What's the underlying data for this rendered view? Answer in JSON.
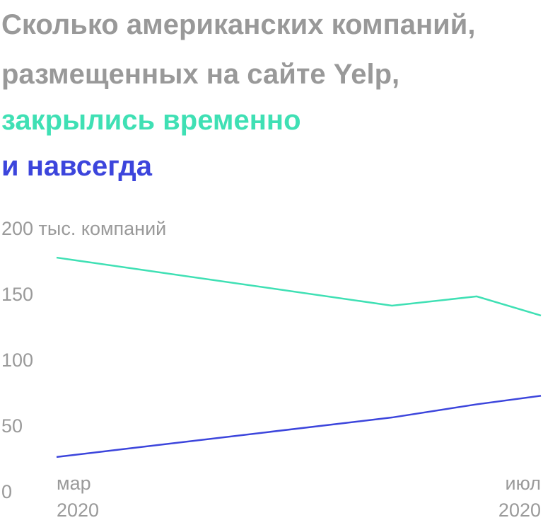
{
  "chart_data": {
    "type": "line",
    "title": "Сколько американских компаний, размещенных на сайте Yelp,",
    "x": [
      3,
      5.77,
      6.47,
      7
    ],
    "xlim": [
      3,
      7
    ],
    "xticks": [
      {
        "value": 3,
        "label": "мар 2020"
      },
      {
        "value": 7,
        "label": "июл 2020"
      }
    ],
    "ylim": [
      0,
      200
    ],
    "yticks": [
      0,
      50,
      100,
      150,
      {
        "value": 200,
        "label": "200 тыс. компаний"
      }
    ],
    "grid": false,
    "series": [
      {
        "name": "закрылись временно",
        "color": "#3fe0b4",
        "values": [
          179,
          142.5,
          149.5,
          135
        ]
      },
      {
        "name": "и навсегда",
        "color": "#3c45dc",
        "values": [
          27.5,
          57.5,
          67.5,
          74
        ]
      }
    ]
  }
}
